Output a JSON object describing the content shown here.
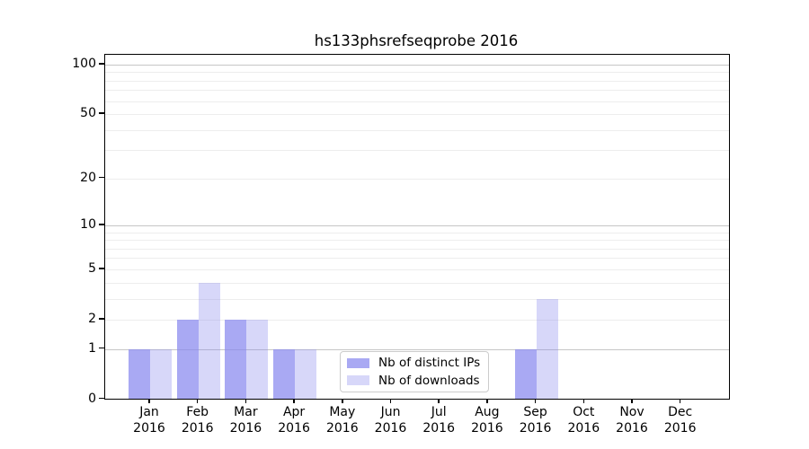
{
  "title": "hs133phsrefseqprobe 2016",
  "chart_data": {
    "type": "bar",
    "categories": [
      "Jan 2016",
      "Feb 2016",
      "Mar 2016",
      "Apr 2016",
      "May 2016",
      "Jun 2016",
      "Jul 2016",
      "Aug 2016",
      "Sep 2016",
      "Oct 2016",
      "Nov 2016",
      "Dec 2016"
    ],
    "series": [
      {
        "name": "Nb of distinct IPs",
        "color": "#8888eeb8",
        "values": [
          1,
          2,
          2,
          1,
          0,
          0,
          0,
          0,
          1,
          0,
          0,
          0
        ]
      },
      {
        "name": "Nb of downloads",
        "color": "#8888ee55",
        "values": [
          1,
          4,
          2,
          1,
          0,
          0,
          0,
          0,
          3,
          0,
          0,
          0
        ]
      }
    ],
    "yscale": "log1p",
    "ylim": [
      0,
      114.7
    ],
    "yticks": [
      0,
      1,
      2,
      5,
      10,
      20,
      50,
      100
    ],
    "grid": "on",
    "grid_major": [
      1,
      10,
      100
    ],
    "grid_minor": [
      2,
      3,
      4,
      5,
      6,
      7,
      8,
      9,
      20,
      30,
      40,
      50,
      60,
      70,
      80,
      90
    ],
    "grid_major_color": "#c6c6c6",
    "grid_minor_color": "#ededed",
    "legend_position": "lower center",
    "xlabel": "",
    "ylabel": ""
  }
}
